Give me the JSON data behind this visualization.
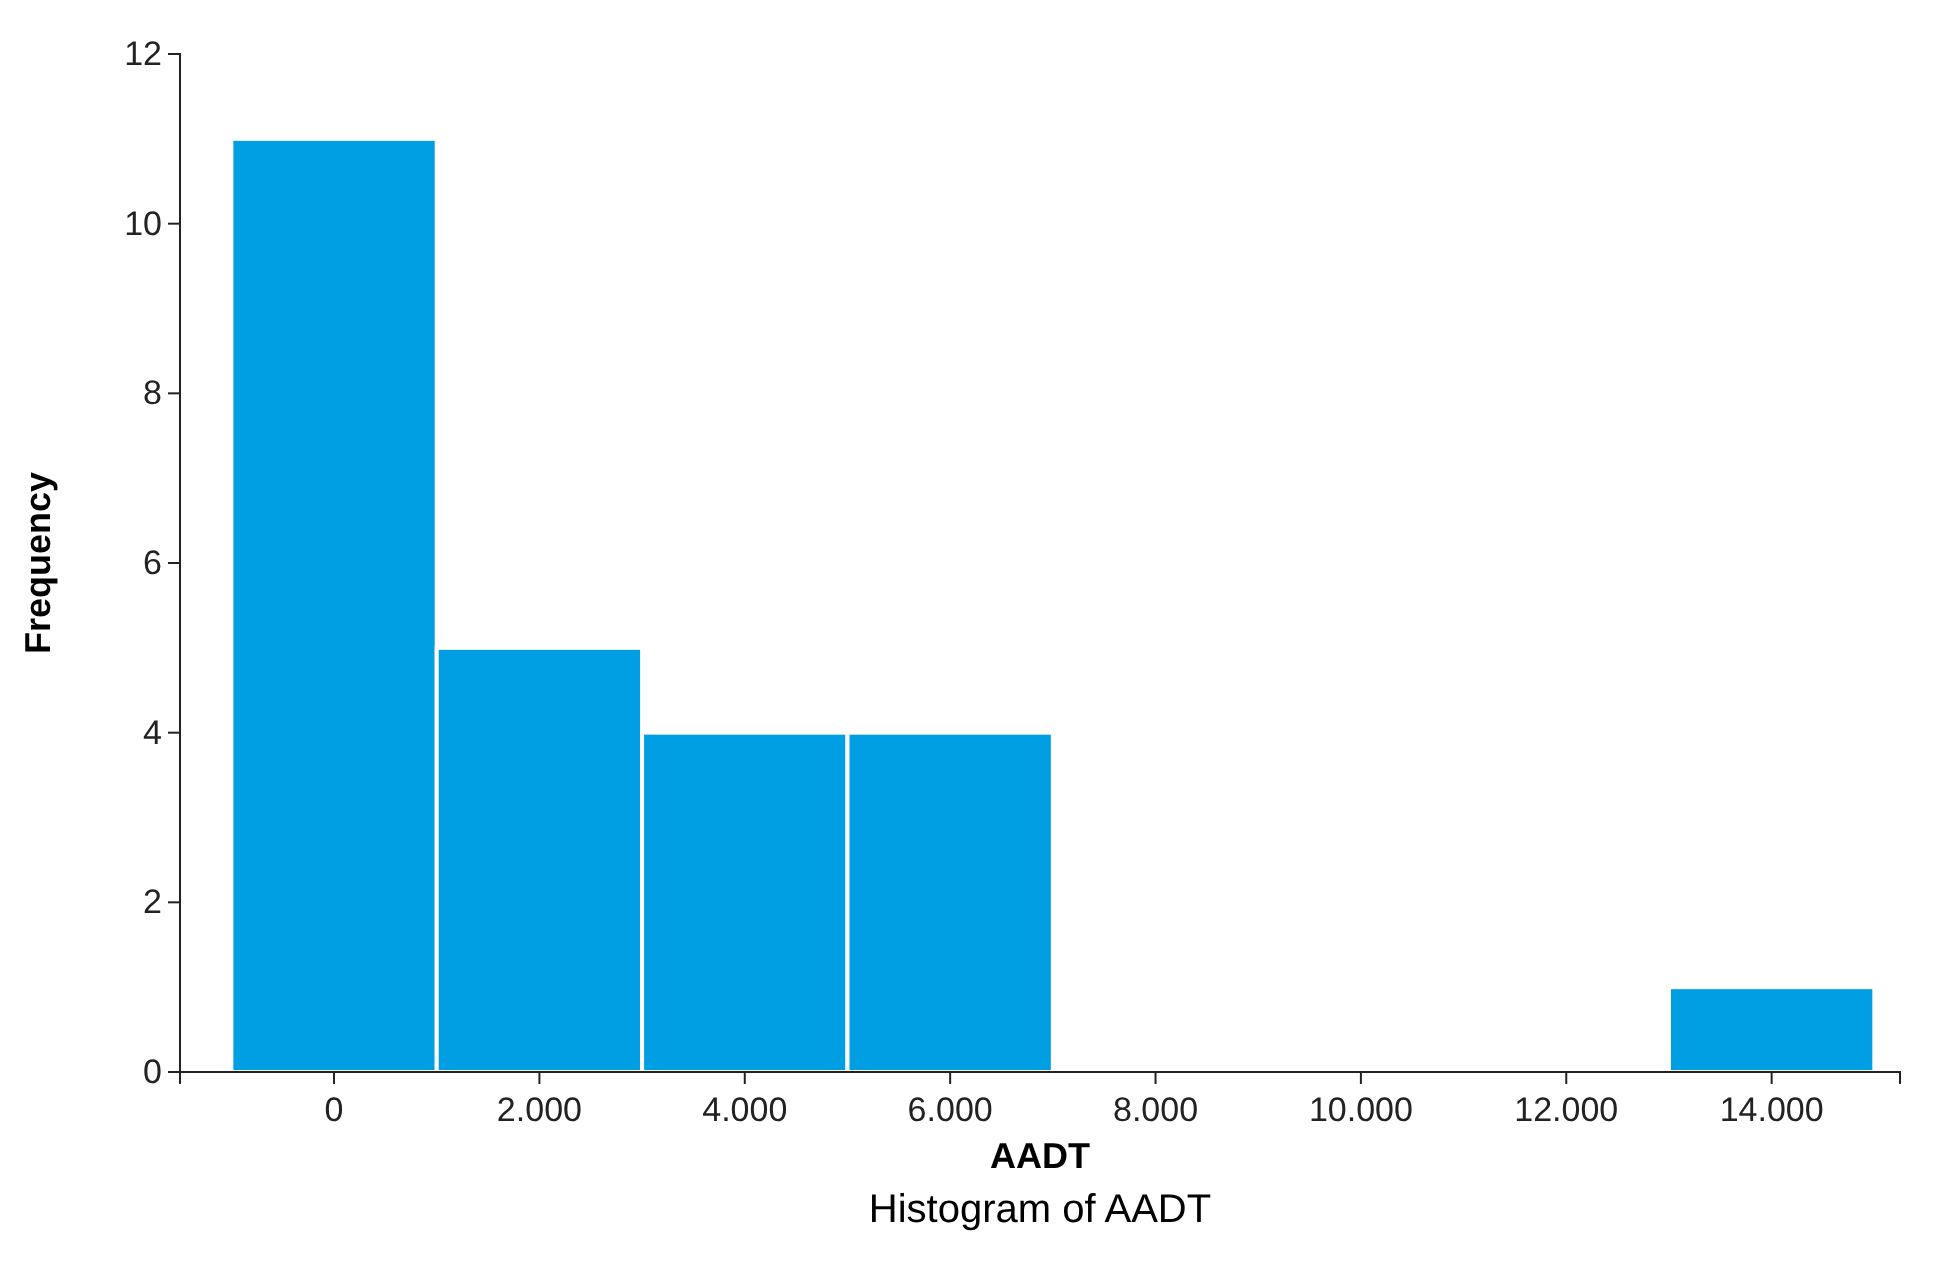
{
  "chart_data": {
    "type": "histogram",
    "title": "Histogram of AADT",
    "xlabel": "AADT",
    "ylabel": "Frequency",
    "bins": [
      -1000,
      1000,
      3000,
      5000,
      7000,
      9000,
      11000,
      13000,
      15000
    ],
    "values": [
      11,
      5,
      4,
      4,
      0,
      0,
      0,
      1
    ],
    "color": "#009fe3",
    "xlim": [
      -1500,
      15250
    ],
    "xticks": [
      0,
      {
        "value": 2000,
        "label": "2.000"
      },
      {
        "value": 4000,
        "label": "4.000"
      },
      {
        "value": 6000,
        "label": "6.000"
      },
      {
        "value": 8000,
        "label": "8.000"
      },
      {
        "value": 10000,
        "label": "10.000"
      },
      {
        "value": 12000,
        "label": "12.000"
      },
      {
        "value": 14000,
        "label": "14.000"
      }
    ],
    "ylim": [
      0,
      12
    ],
    "yticks": [
      0,
      2,
      4,
      6,
      8,
      10,
      12
    ],
    "grid": false
  }
}
